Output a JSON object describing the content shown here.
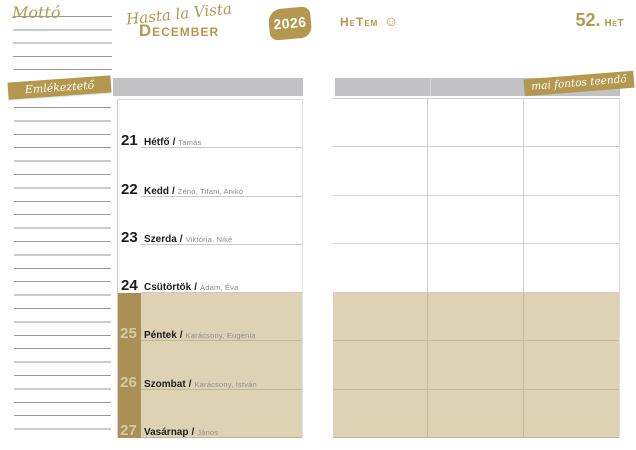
{
  "header": {
    "motto_label": "Mottó",
    "script_title": "Hasta la Vista",
    "month": "December",
    "year_badge": "2026",
    "my_week_label": "HeTem",
    "smiley_icon": "smiley-face",
    "week_number": "52.",
    "week_unit": "HéT"
  },
  "sidebar": {
    "reminder_banner": "Emlékeztető"
  },
  "left_page": {
    "slash": "/",
    "days": [
      {
        "num": "21",
        "name": "Hétfő",
        "namedays": "Tamás",
        "weekend": false
      },
      {
        "num": "22",
        "name": "Kedd",
        "namedays": "Zénó, Tifani, Anikó",
        "weekend": false
      },
      {
        "num": "23",
        "name": "Szerda",
        "namedays": "Viktória, Niké",
        "weekend": false
      },
      {
        "num": "24",
        "name": "Csütörtök",
        "namedays": "Ádám, Éva",
        "weekend": false
      },
      {
        "num": "25",
        "name": "Péntek",
        "namedays": "Karácsony, Eugénia",
        "weekend": true
      },
      {
        "num": "26",
        "name": "Szombat",
        "namedays": "Karácsony, István",
        "weekend": true
      },
      {
        "num": "27",
        "name": "Vasárnap",
        "namedays": "János",
        "weekend": true
      }
    ]
  },
  "right_page": {
    "todo_banner": "mai fontos teendő",
    "columns": 3,
    "rows": 7,
    "weekend_rows_start": 5
  },
  "colors": {
    "gold": "#b4984f",
    "tan": "#ddd2b3",
    "gold_strip": "#aa9054",
    "gray_bar": "#c2c2c5"
  }
}
